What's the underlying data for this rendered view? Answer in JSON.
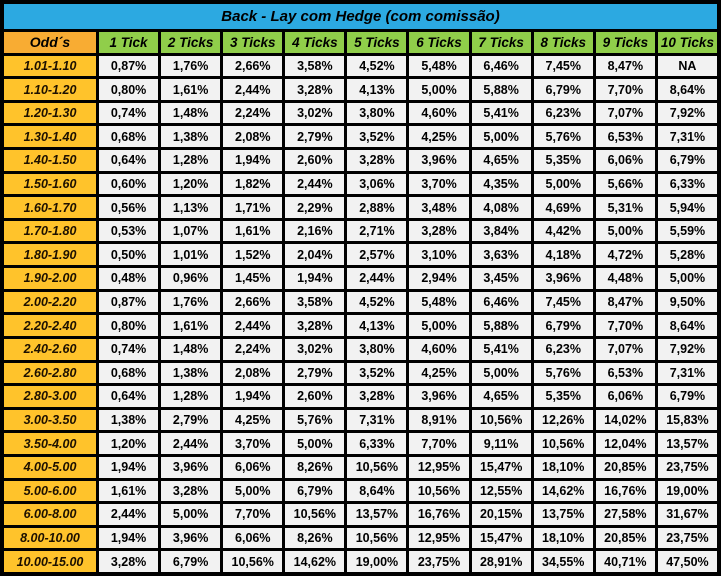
{
  "title": "Back - Lay com Hedge (com comissão)",
  "colors": {
    "border": "#000000",
    "title_bg": "#2CA9E1",
    "green_header_bg": "#90CE4A",
    "corner_header_bg": "#F8AC33",
    "odds_column_bg": "#FFC32B",
    "value_cell_bg": "#F2F2F2",
    "text": "#000000"
  },
  "chart_data": {
    "type": "table",
    "title": "Back - Lay com Hedge (com comissão)",
    "columns": [
      "Odd´s",
      "1 Tick",
      "2 Ticks",
      "3 Ticks",
      "4 Ticks",
      "5 Ticks",
      "6 Ticks",
      "7 Ticks",
      "8 Ticks",
      "9 Ticks",
      "10 Ticks"
    ],
    "rows": [
      [
        "1.01-1.10",
        "0,87%",
        "1,76%",
        "2,66%",
        "3,58%",
        "4,52%",
        "5,48%",
        "6,46%",
        "7,45%",
        "8,47%",
        "NA"
      ],
      [
        "1.10-1.20",
        "0,80%",
        "1,61%",
        "2,44%",
        "3,28%",
        "4,13%",
        "5,00%",
        "5,88%",
        "6,79%",
        "7,70%",
        "8,64%"
      ],
      [
        "1.20-1.30",
        "0,74%",
        "1,48%",
        "2,24%",
        "3,02%",
        "3,80%",
        "4,60%",
        "5,41%",
        "6,23%",
        "7,07%",
        "7,92%"
      ],
      [
        "1.30-1.40",
        "0,68%",
        "1,38%",
        "2,08%",
        "2,79%",
        "3,52%",
        "4,25%",
        "5,00%",
        "5,76%",
        "6,53%",
        "7,31%"
      ],
      [
        "1.40-1.50",
        "0,64%",
        "1,28%",
        "1,94%",
        "2,60%",
        "3,28%",
        "3,96%",
        "4,65%",
        "5,35%",
        "6,06%",
        "6,79%"
      ],
      [
        "1.50-1.60",
        "0,60%",
        "1,20%",
        "1,82%",
        "2,44%",
        "3,06%",
        "3,70%",
        "4,35%",
        "5,00%",
        "5,66%",
        "6,33%"
      ],
      [
        "1.60-1.70",
        "0,56%",
        "1,13%",
        "1,71%",
        "2,29%",
        "2,88%",
        "3,48%",
        "4,08%",
        "4,69%",
        "5,31%",
        "5,94%"
      ],
      [
        "1.70-1.80",
        "0,53%",
        "1,07%",
        "1,61%",
        "2,16%",
        "2,71%",
        "3,28%",
        "3,84%",
        "4,42%",
        "5,00%",
        "5,59%"
      ],
      [
        "1.80-1.90",
        "0,50%",
        "1,01%",
        "1,52%",
        "2,04%",
        "2,57%",
        "3,10%",
        "3,63%",
        "4,18%",
        "4,72%",
        "5,28%"
      ],
      [
        "1.90-2.00",
        "0,48%",
        "0,96%",
        "1,45%",
        "1,94%",
        "2,44%",
        "2,94%",
        "3,45%",
        "3,96%",
        "4,48%",
        "5,00%"
      ],
      [
        "2.00-2.20",
        "0,87%",
        "1,76%",
        "2,66%",
        "3,58%",
        "4,52%",
        "5,48%",
        "6,46%",
        "7,45%",
        "8,47%",
        "9,50%"
      ],
      [
        "2.20-2.40",
        "0,80%",
        "1,61%",
        "2,44%",
        "3,28%",
        "4,13%",
        "5,00%",
        "5,88%",
        "6,79%",
        "7,70%",
        "8,64%"
      ],
      [
        "2.40-2.60",
        "0,74%",
        "1,48%",
        "2,24%",
        "3,02%",
        "3,80%",
        "4,60%",
        "5,41%",
        "6,23%",
        "7,07%",
        "7,92%"
      ],
      [
        "2.60-2.80",
        "0,68%",
        "1,38%",
        "2,08%",
        "2,79%",
        "3,52%",
        "4,25%",
        "5,00%",
        "5,76%",
        "6,53%",
        "7,31%"
      ],
      [
        "2.80-3.00",
        "0,64%",
        "1,28%",
        "1,94%",
        "2,60%",
        "3,28%",
        "3,96%",
        "4,65%",
        "5,35%",
        "6,06%",
        "6,79%"
      ],
      [
        "3.00-3.50",
        "1,38%",
        "2,79%",
        "4,25%",
        "5,76%",
        "7,31%",
        "8,91%",
        "10,56%",
        "12,26%",
        "14,02%",
        "15,83%"
      ],
      [
        "3.50-4.00",
        "1,20%",
        "2,44%",
        "3,70%",
        "5,00%",
        "6,33%",
        "7,70%",
        "9,11%",
        "10,56%",
        "12,04%",
        "13,57%"
      ],
      [
        "4.00-5.00",
        "1,94%",
        "3,96%",
        "6,06%",
        "8,26%",
        "10,56%",
        "12,95%",
        "15,47%",
        "18,10%",
        "20,85%",
        "23,75%"
      ],
      [
        "5.00-6.00",
        "1,61%",
        "3,28%",
        "5,00%",
        "6,79%",
        "8,64%",
        "10,56%",
        "12,55%",
        "14,62%",
        "16,76%",
        "19,00%"
      ],
      [
        "6.00-8.00",
        "2,44%",
        "5,00%",
        "7,70%",
        "10,56%",
        "13,57%",
        "16,76%",
        "20,15%",
        "13,75%",
        "27,58%",
        "31,67%"
      ],
      [
        "8.00-10.00",
        "1,94%",
        "3,96%",
        "6,06%",
        "8,26%",
        "10,56%",
        "12,95%",
        "15,47%",
        "18,10%",
        "20,85%",
        "23,75%"
      ],
      [
        "10.00-15.00",
        "3,28%",
        "6,79%",
        "10,56%",
        "14,62%",
        "19,00%",
        "23,75%",
        "28,91%",
        "34,55%",
        "40,71%",
        "47,50%"
      ]
    ]
  }
}
